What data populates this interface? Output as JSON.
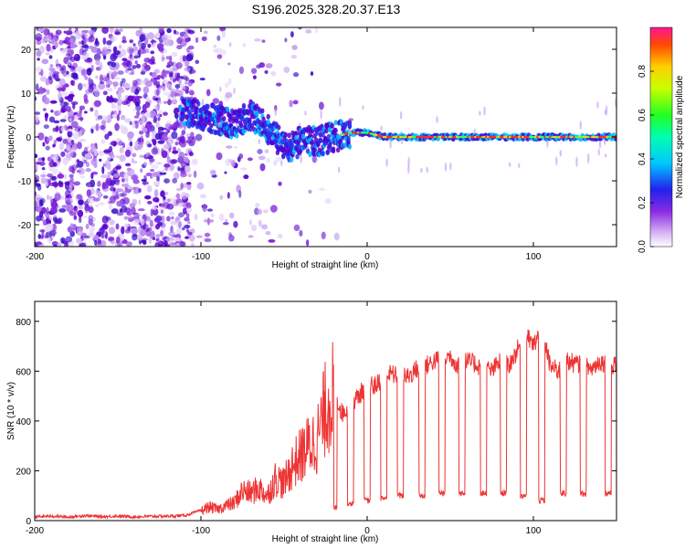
{
  "title": "S196.2025.328.20.37.E13",
  "chart_data": [
    {
      "type": "heatmap",
      "name": "spectrogram",
      "xlabel": "Height of straight line (km)",
      "ylabel": "Frequency (Hz)",
      "xlim": [
        -200,
        150
      ],
      "ylim": [
        -25,
        25
      ],
      "xticks": [
        "-200",
        "-100",
        "0",
        "100"
      ],
      "yticks": [
        "20",
        "10",
        "0",
        "-10",
        "-20"
      ],
      "tone_track": [
        {
          "x": -110,
          "y": 6
        },
        {
          "x": -100,
          "y": 5
        },
        {
          "x": -90,
          "y": 4
        },
        {
          "x": -80,
          "y": 3
        },
        {
          "x": -70,
          "y": 5
        },
        {
          "x": -60,
          "y": 2
        },
        {
          "x": -55,
          "y": 0
        },
        {
          "x": -50,
          "y": -2
        },
        {
          "x": -45,
          "y": -2
        },
        {
          "x": -40,
          "y": -1
        },
        {
          "x": -30,
          "y": -1
        },
        {
          "x": -20,
          "y": 0
        },
        {
          "x": -10,
          "y": 1
        },
        {
          "x": 0,
          "y": 1
        },
        {
          "x": 10,
          "y": 0
        },
        {
          "x": 150,
          "y": 0
        }
      ],
      "colorbar": {
        "label": "Normalized spectral amplitude",
        "range": [
          0,
          1
        ],
        "ticks": [
          "0.0",
          "0.2",
          "0.4",
          "0.6",
          "0.8"
        ]
      }
    },
    {
      "type": "line",
      "name": "snr",
      "xlabel": "Height of straight line (km)",
      "ylabel": "SNR (10 * v/v)",
      "xlim": [
        -200,
        150
      ],
      "ylim": [
        0,
        880
      ],
      "xticks": [
        "-200",
        "-100",
        "0",
        "100"
      ],
      "yticks": [
        "0",
        "200",
        "400",
        "600",
        "800"
      ],
      "series": [
        {
          "name": "SNR",
          "color": "#ee3333",
          "points": [
            [
              -200,
              15
            ],
            [
              -190,
              18
            ],
            [
              -180,
              14
            ],
            [
              -170,
              20
            ],
            [
              -160,
              16
            ],
            [
              -150,
              18
            ],
            [
              -140,
              15
            ],
            [
              -130,
              17
            ],
            [
              -120,
              18
            ],
            [
              -110,
              20
            ],
            [
              -100,
              40
            ],
            [
              -95,
              55
            ],
            [
              -90,
              45
            ],
            [
              -85,
              60
            ],
            [
              -80,
              70
            ],
            [
              -75,
              120
            ],
            [
              -70,
              110
            ],
            [
              -65,
              130
            ],
            [
              -60,
              100
            ],
            [
              -55,
              170
            ],
            [
              -50,
              150
            ],
            [
              -45,
              220
            ],
            [
              -40,
              260
            ],
            [
              -35,
              300
            ],
            [
              -30,
              330
            ],
            [
              -25,
              450
            ],
            [
              -20,
              520
            ],
            [
              -15,
              430
            ],
            [
              -10,
              470
            ],
            [
              -5,
              500
            ],
            [
              0,
              550
            ],
            [
              5,
              540
            ],
            [
              10,
              580
            ],
            [
              15,
              590
            ],
            [
              20,
              570
            ],
            [
              25,
              580
            ],
            [
              30,
              610
            ],
            [
              35,
              620
            ],
            [
              40,
              640
            ],
            [
              45,
              650
            ],
            [
              50,
              660
            ],
            [
              55,
              620
            ],
            [
              60,
              640
            ],
            [
              65,
              630
            ],
            [
              70,
              610
            ],
            [
              75,
              600
            ],
            [
              80,
              640
            ],
            [
              85,
              620
            ],
            [
              90,
              680
            ],
            [
              95,
              750
            ],
            [
              100,
              700
            ],
            [
              105,
              780
            ],
            [
              110,
              620
            ],
            [
              115,
              600
            ],
            [
              120,
              640
            ],
            [
              125,
              630
            ],
            [
              130,
              620
            ],
            [
              135,
              610
            ],
            [
              140,
              640
            ],
            [
              145,
              630
            ],
            [
              150,
              620
            ]
          ],
          "dropouts": [
            {
              "x": -20,
              "y": 50
            },
            {
              "x": -10,
              "y": 70
            },
            {
              "x": 0,
              "y": 80
            },
            {
              "x": 10,
              "y": 90
            },
            {
              "x": 20,
              "y": 100
            },
            {
              "x": 33,
              "y": 100
            },
            {
              "x": 45,
              "y": 110
            },
            {
              "x": 57,
              "y": 110
            },
            {
              "x": 70,
              "y": 110
            },
            {
              "x": 82,
              "y": 110
            },
            {
              "x": 94,
              "y": 100
            },
            {
              "x": 105,
              "y": 80
            },
            {
              "x": 118,
              "y": 110
            },
            {
              "x": 130,
              "y": 110
            },
            {
              "x": 145,
              "y": 110
            }
          ]
        }
      ]
    }
  ]
}
